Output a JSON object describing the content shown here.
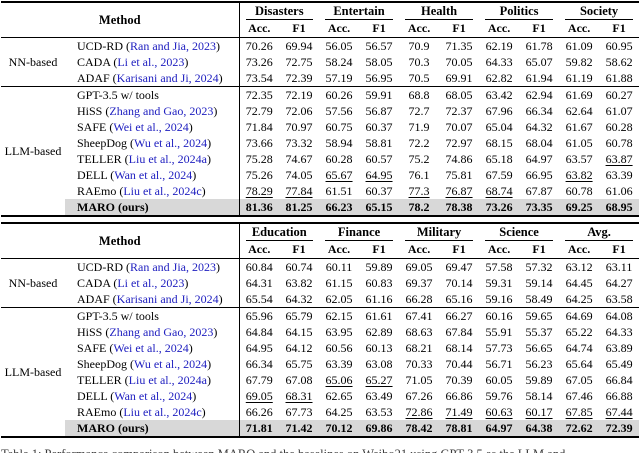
{
  "styles": {
    "citation_color": "#2020c0",
    "highlight_color": "#d8d8d8"
  },
  "caption": {
    "text": "Table 1: Performance comparison between MARO and the baselines on Weibo21 using GPT-3.5 as the LLM and"
  },
  "subheaders": [
    "Acc.",
    "F1"
  ],
  "method_header": "Method",
  "tables": [
    {
      "domains": [
        "Disasters",
        "Entertain",
        "Health",
        "Politics",
        "Society"
      ],
      "groups": [
        {
          "label": "NN-based",
          "rows": [
            {
              "name": "UCD-RD",
              "citation": "Ran and Jia, 2023",
              "values": [
                "70.26",
                "69.94",
                "56.05",
                "56.57",
                "70.9",
                "71.35",
                "62.19",
                "61.78",
                "61.09",
                "60.95"
              ],
              "underline": [],
              "highlight": false
            },
            {
              "name": "CADA",
              "citation": "Li et al., 2023",
              "values": [
                "73.26",
                "72.75",
                "58.24",
                "58.05",
                "70.3",
                "70.05",
                "64.33",
                "65.07",
                "59.82",
                "58.62"
              ],
              "underline": [],
              "highlight": false
            },
            {
              "name": "ADAF",
              "citation": "Karisani and Ji, 2024",
              "values": [
                "73.54",
                "72.39",
                "57.19",
                "56.95",
                "70.5",
                "69.91",
                "62.82",
                "61.94",
                "61.19",
                "61.88"
              ],
              "underline": [],
              "highlight": false
            }
          ]
        },
        {
          "label": "LLM-based",
          "rows": [
            {
              "name": "GPT-3.5 w/ tools",
              "citation": null,
              "values": [
                "72.35",
                "72.19",
                "60.26",
                "59.91",
                "68.8",
                "68.05",
                "63.42",
                "62.94",
                "61.69",
                "60.27"
              ],
              "underline": [],
              "highlight": false
            },
            {
              "name": "HiSS",
              "citation": "Zhang and Gao, 2023",
              "values": [
                "72.79",
                "72.06",
                "57.56",
                "56.87",
                "72.7",
                "72.37",
                "67.96",
                "66.34",
                "62.64",
                "61.07"
              ],
              "underline": [],
              "highlight": false
            },
            {
              "name": "SAFE",
              "citation": "Wei et al., 2024",
              "values": [
                "71.84",
                "70.97",
                "60.75",
                "60.37",
                "71.9",
                "70.07",
                "65.04",
                "64.32",
                "61.67",
                "60.28"
              ],
              "underline": [],
              "highlight": false
            },
            {
              "name": "SheepDog",
              "citation": "Wu et al., 2024",
              "values": [
                "73.66",
                "73.32",
                "58.94",
                "58.81",
                "72.2",
                "72.97",
                "68.15",
                "68.04",
                "61.05",
                "60.78"
              ],
              "underline": [],
              "highlight": false
            },
            {
              "name": "TELLER",
              "citation": "Liu et al., 2024a",
              "values": [
                "75.28",
                "74.67",
                "60.28",
                "60.57",
                "75.2",
                "74.86",
                "65.18",
                "64.97",
                "63.57",
                "63.87"
              ],
              "underline": [
                9
              ],
              "highlight": false
            },
            {
              "name": "DELL",
              "citation": "Wan et al., 2024",
              "values": [
                "75.26",
                "74.05",
                "65.67",
                "64.95",
                "76.1",
                "75.81",
                "67.59",
                "66.95",
                "63.82",
                "63.39"
              ],
              "underline": [
                2,
                3,
                8
              ],
              "highlight": false
            },
            {
              "name": "RAEmo",
              "citation": "Liu et al., 2024c",
              "values": [
                "78.29",
                "77.84",
                "61.51",
                "60.37",
                "77.3",
                "76.87",
                "68.74",
                "67.87",
                "60.78",
                "61.06"
              ],
              "underline": [
                0,
                1,
                4,
                5,
                6
              ],
              "highlight": false
            },
            {
              "name": "MARO (ours)",
              "citation": null,
              "values": [
                "81.36",
                "81.25",
                "66.23",
                "65.15",
                "78.2",
                "78.38",
                "73.26",
                "73.35",
                "69.25",
                "68.95"
              ],
              "underline": [],
              "highlight": true
            }
          ]
        }
      ]
    },
    {
      "domains": [
        "Education",
        "Finance",
        "Military",
        "Science",
        "Avg."
      ],
      "groups": [
        {
          "label": "NN-based",
          "rows": [
            {
              "name": "UCD-RD",
              "citation": "Ran and Jia, 2023",
              "values": [
                "60.84",
                "60.74",
                "60.11",
                "59.89",
                "69.05",
                "69.47",
                "57.58",
                "57.32",
                "63.12",
                "63.11"
              ],
              "underline": [],
              "highlight": false
            },
            {
              "name": "CADA",
              "citation": "Li et al., 2023",
              "values": [
                "64.31",
                "63.82",
                "61.15",
                "60.83",
                "69.37",
                "70.14",
                "59.31",
                "59.14",
                "64.45",
                "64.27"
              ],
              "underline": [],
              "highlight": false
            },
            {
              "name": "ADAF",
              "citation": "Karisani and Ji, 2024",
              "values": [
                "65.54",
                "64.32",
                "62.05",
                "61.16",
                "66.28",
                "65.16",
                "59.16",
                "58.49",
                "64.25",
                "63.58"
              ],
              "underline": [],
              "highlight": false
            }
          ]
        },
        {
          "label": "LLM-based",
          "rows": [
            {
              "name": "GPT-3.5 w/ tools",
              "citation": null,
              "values": [
                "65.96",
                "65.79",
                "62.15",
                "61.61",
                "67.41",
                "66.27",
                "60.16",
                "59.65",
                "64.69",
                "64.08"
              ],
              "underline": [],
              "highlight": false
            },
            {
              "name": "HiSS",
              "citation": "Zhang and Gao, 2023",
              "values": [
                "64.84",
                "64.15",
                "63.95",
                "62.89",
                "68.63",
                "67.84",
                "55.91",
                "55.37",
                "65.22",
                "64.33"
              ],
              "underline": [],
              "highlight": false
            },
            {
              "name": "SAFE",
              "citation": "Wei et al., 2024",
              "values": [
                "64.95",
                "64.12",
                "60.56",
                "60.13",
                "68.21",
                "68.14",
                "57.73",
                "56.65",
                "64.74",
                "63.89"
              ],
              "underline": [],
              "highlight": false
            },
            {
              "name": "SheepDog",
              "citation": "Wu et al., 2024",
              "values": [
                "66.34",
                "65.75",
                "63.39",
                "63.08",
                "70.33",
                "70.44",
                "56.71",
                "56.23",
                "65.64",
                "65.49"
              ],
              "underline": [],
              "highlight": false
            },
            {
              "name": "TELLER",
              "citation": "Liu et al., 2024a",
              "values": [
                "67.79",
                "67.08",
                "65.06",
                "65.27",
                "71.05",
                "70.39",
                "60.05",
                "59.89",
                "67.05",
                "66.84"
              ],
              "underline": [
                2,
                3
              ],
              "highlight": false
            },
            {
              "name": "DELL",
              "citation": "Wan et al., 2024",
              "values": [
                "69.05",
                "68.31",
                "62.65",
                "63.49",
                "67.26",
                "66.86",
                "59.76",
                "58.14",
                "67.46",
                "66.88"
              ],
              "underline": [
                0,
                1
              ],
              "highlight": false
            },
            {
              "name": "RAEmo",
              "citation": "Liu et al., 2024c",
              "values": [
                "66.26",
                "67.73",
                "64.25",
                "63.53",
                "72.86",
                "71.49",
                "60.63",
                "60.17",
                "67.85",
                "67.44"
              ],
              "underline": [
                4,
                5,
                6,
                7,
                8,
                9
              ],
              "highlight": false
            },
            {
              "name": "MARO (ours)",
              "citation": null,
              "values": [
                "71.81",
                "71.42",
                "70.12",
                "69.86",
                "78.42",
                "78.81",
                "64.97",
                "64.38",
                "72.62",
                "72.39"
              ],
              "underline": [],
              "highlight": true
            }
          ]
        }
      ]
    }
  ]
}
